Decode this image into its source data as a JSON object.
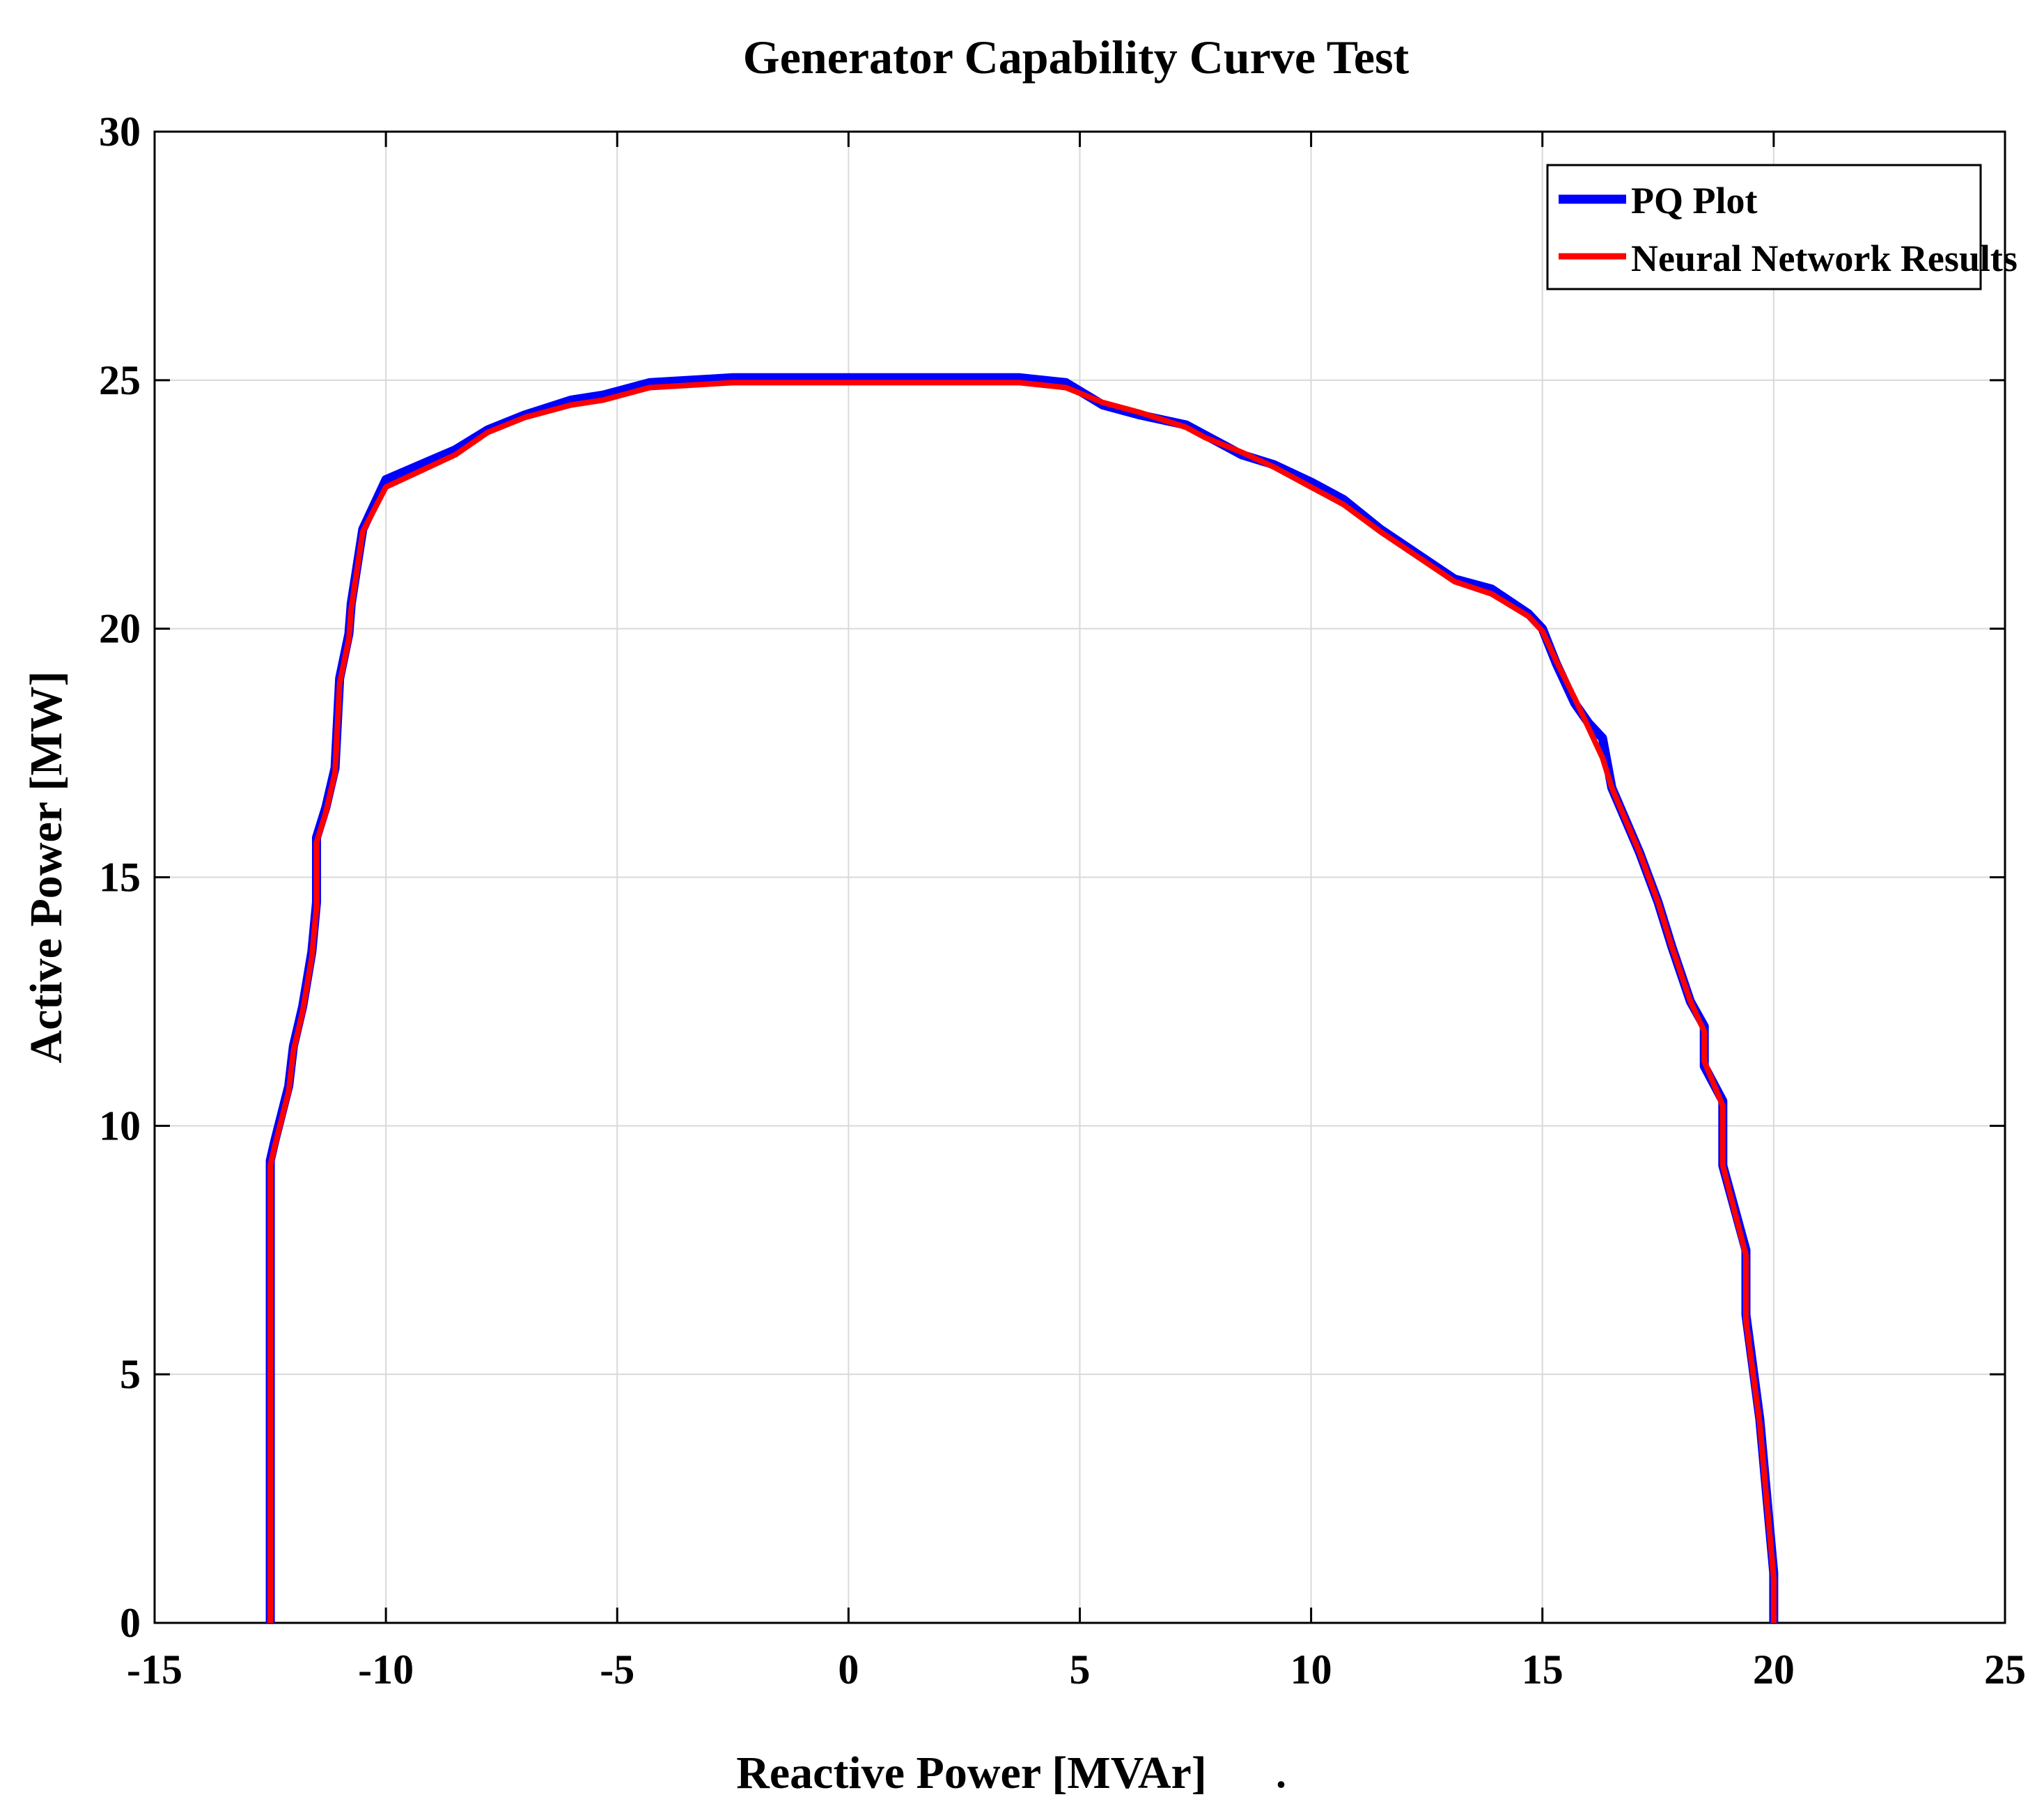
{
  "chart_data": {
    "type": "line",
    "title": "Generator Capability Curve Test",
    "xlabel": "Reactive Power [MVAr]",
    "ylabel": "Active Power [MW]",
    "xlim": [
      -15,
      25
    ],
    "ylim": [
      0,
      30
    ],
    "xticks": [
      -15,
      -10,
      -5,
      0,
      5,
      10,
      15,
      20,
      25
    ],
    "yticks": [
      0,
      5,
      10,
      15,
      20,
      25,
      30
    ],
    "xtick_labels": [
      "-15",
      "-10",
      "-5",
      "0",
      "5",
      "10",
      "15",
      "20",
      "25"
    ],
    "ytick_labels": [
      "0",
      "5",
      "10",
      "15",
      "20",
      "25",
      "30"
    ],
    "grid": true,
    "legend_position": "top-right",
    "series": [
      {
        "name": "PQ Plot",
        "color": "#0000ff",
        "x": [
          -12.5,
          -12.5,
          -12.5,
          -12.4,
          -12.1,
          -12.0,
          -11.8,
          -11.6,
          -11.5,
          -11.5,
          -11.3,
          -11.1,
          -11.0,
          -10.8,
          -10.75,
          -10.5,
          -10.0,
          -8.5,
          -7.8,
          -7.0,
          -6.0,
          -5.3,
          -4.3,
          -2.5,
          0.0,
          2.0,
          3.7,
          4.7,
          5.5,
          6.3,
          7.3,
          7.7,
          8.5,
          9.2,
          10.0,
          10.7,
          11.5,
          12.3,
          13.1,
          13.9,
          14.7,
          15.0,
          15.3,
          15.7,
          16.0,
          16.3,
          16.5,
          17.1,
          17.5,
          17.8,
          18.2,
          18.5,
          18.5,
          18.9,
          18.9,
          19.4,
          19.4,
          19.7,
          20.0,
          20.0
        ],
        "y": [
          0,
          5,
          9.3,
          9.7,
          10.8,
          11.6,
          12.4,
          13.5,
          14.5,
          15.8,
          16.4,
          17.2,
          19.0,
          19.9,
          20.5,
          22.0,
          23.0,
          23.6,
          24.0,
          24.3,
          24.6,
          24.7,
          24.95,
          25.05,
          25.05,
          25.05,
          25.05,
          24.95,
          24.5,
          24.3,
          24.1,
          23.9,
          23.5,
          23.3,
          22.95,
          22.6,
          22.0,
          21.5,
          21.0,
          20.8,
          20.3,
          20.0,
          19.3,
          18.5,
          18.1,
          17.8,
          16.8,
          15.5,
          14.5,
          13.6,
          12.5,
          12.0,
          11.2,
          10.5,
          9.2,
          7.5,
          6.2,
          4.1,
          1.0,
          0
        ]
      },
      {
        "name": "Neural Network Results",
        "color": "#ff0000",
        "x": [
          -12.5,
          -12.5,
          -12.5,
          -12.4,
          -12.1,
          -12.0,
          -11.8,
          -11.6,
          -11.5,
          -11.5,
          -11.3,
          -11.1,
          -11.0,
          -10.8,
          -10.75,
          -10.5,
          -10.0,
          -8.5,
          -7.8,
          -7.0,
          -6.0,
          -5.3,
          -4.3,
          -2.5,
          0.0,
          2.0,
          3.7,
          4.7,
          5.5,
          6.3,
          7.3,
          7.7,
          8.5,
          9.2,
          10.0,
          10.7,
          11.5,
          12.3,
          13.1,
          13.9,
          14.7,
          15.0,
          15.3,
          15.7,
          16.0,
          16.3,
          16.5,
          17.1,
          17.5,
          17.8,
          18.2,
          18.5,
          18.5,
          18.9,
          18.9,
          19.4,
          19.4,
          19.7,
          20.0,
          20.0
        ],
        "y": [
          0,
          5,
          9.2,
          9.6,
          10.7,
          11.5,
          12.3,
          13.4,
          14.4,
          15.7,
          16.3,
          17.1,
          18.9,
          19.8,
          20.4,
          21.95,
          22.85,
          23.5,
          23.95,
          24.25,
          24.5,
          24.6,
          24.85,
          24.95,
          24.95,
          24.95,
          24.95,
          24.85,
          24.55,
          24.35,
          24.05,
          23.85,
          23.55,
          23.25,
          22.85,
          22.5,
          21.95,
          21.45,
          20.95,
          20.7,
          20.25,
          19.95,
          19.35,
          18.6,
          18.0,
          17.4,
          16.8,
          15.5,
          14.5,
          13.6,
          12.5,
          11.9,
          11.3,
          10.4,
          9.2,
          7.4,
          6.1,
          4.0,
          0.9,
          0
        ]
      }
    ]
  },
  "footnote_mark": "."
}
